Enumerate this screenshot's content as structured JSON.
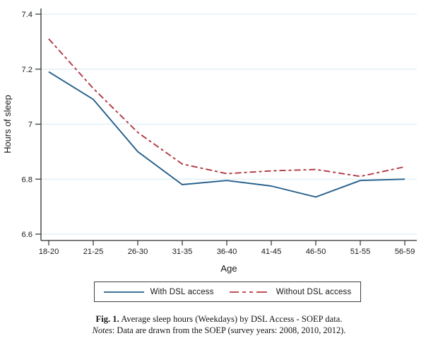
{
  "chart_data": {
    "type": "line",
    "categories": [
      "18-20",
      "21-25",
      "26-30",
      "31-35",
      "36-40",
      "41-45",
      "46-50",
      "51-55",
      "56-59"
    ],
    "series": [
      {
        "name": "With DSL access",
        "color": "#26608c",
        "line_style": "solid",
        "values": [
          7.19,
          7.09,
          6.9,
          6.78,
          6.795,
          6.775,
          6.735,
          6.795,
          6.8
        ]
      },
      {
        "name": "Without DSL access",
        "color": "#b23842",
        "line_style": "dash-dot",
        "values": [
          7.31,
          7.13,
          6.97,
          6.855,
          6.82,
          6.83,
          6.835,
          6.81,
          6.845
        ]
      }
    ],
    "xlabel": "Age",
    "ylabel": "Hours of sleep",
    "ylim": [
      6.6,
      7.4
    ],
    "yticks": [
      7.4,
      7.2,
      7.0,
      6.8,
      6.6
    ],
    "ytick_labels": [
      "7.4",
      "7.2",
      "7",
      "6.8",
      "6.6"
    ],
    "grid": "horizontal",
    "gridline_color": "#dcedf5",
    "axis_color": "#2e2e2e",
    "legend_position": "bottom-boxed"
  },
  "legend": {
    "items": [
      {
        "label": "With DSL access"
      },
      {
        "label": "Without DSL access"
      }
    ]
  },
  "caption": {
    "label": "Fig. 1.",
    "text": "Average sleep hours (Weekdays) by DSL Access - SOEP data."
  },
  "notes": {
    "label": "Notes",
    "text": ": Data are drawn from the SOEP (survey years: 2008, 2010, 2012)."
  }
}
